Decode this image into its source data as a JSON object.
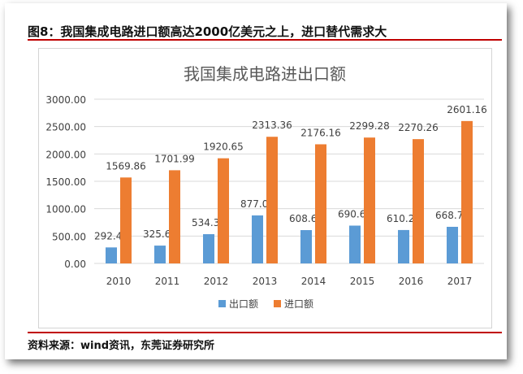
{
  "figure_title": "图8：我国集成电路进口额高达2000亿美元之上，进口替代需求大",
  "source_note": "资料来源：wind资讯，东莞证券研究所",
  "colors": {
    "export": "#5b9bd5",
    "import": "#ed7d31",
    "accent_rule": "#c00000",
    "gridline": "#d9d9d9",
    "axis_text": "#404040",
    "title_text": "#595959"
  },
  "chart_data": {
    "type": "bar",
    "title": "我国集成电路进出口额",
    "categories": [
      "2010",
      "2011",
      "2012",
      "2013",
      "2014",
      "2015",
      "2016",
      "2017"
    ],
    "series": [
      {
        "name": "出口额",
        "values": [
          292.46,
          325.66,
          534.35,
          877.0,
          608.66,
          690.63,
          610.21,
          668.77
        ],
        "labels": [
          "292.46",
          "325.66",
          "534.35",
          "877.00",
          "608.66",
          "690.63",
          "610.21",
          "668.77"
        ]
      },
      {
        "name": "进口额",
        "values": [
          1569.86,
          1701.99,
          1920.65,
          2313.36,
          2176.16,
          2299.28,
          2270.26,
          2601.16
        ],
        "labels": [
          "1569.86",
          "1701.99",
          "1920.65",
          "2313.36",
          "2176.16",
          "2299.28",
          "2270.26",
          "2601.16"
        ]
      }
    ],
    "ylim": [
      0,
      3000
    ],
    "yticks": [
      "0.00",
      "500.00",
      "1000.00",
      "1500.00",
      "2000.00",
      "2500.00",
      "3000.00"
    ],
    "grid": true,
    "legend_position": "bottom",
    "xlabel": "",
    "ylabel": ""
  }
}
